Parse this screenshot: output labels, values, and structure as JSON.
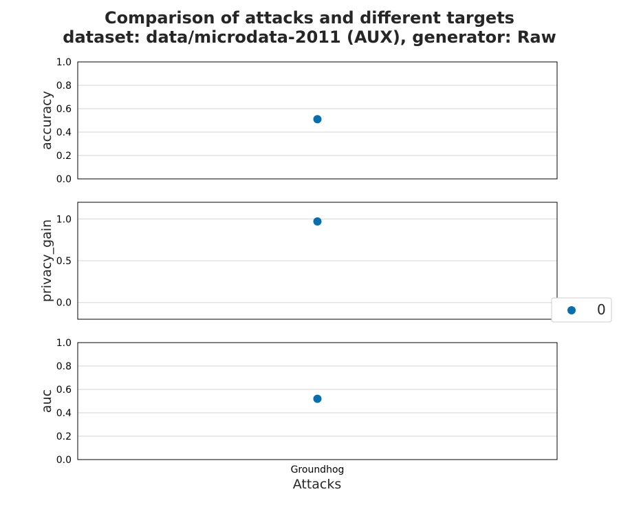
{
  "title_line1": "Comparison of attacks and different targets",
  "title_line2": "dataset: data/microdata-2011 (AUX), generator: Raw",
  "xlabel": "Attacks",
  "legend": {
    "entries": [
      "0"
    ],
    "placement": "right-center"
  },
  "colors": {
    "series": "#0a6eab",
    "grid": "#d6d6d6",
    "frame": "#000000"
  },
  "chart_data": [
    {
      "type": "scatter",
      "categories": [
        "Groundhog"
      ],
      "ylabel": "accuracy",
      "ylim": [
        0.0,
        1.0
      ],
      "yticks": [
        "0.0",
        "0.2",
        "0.4",
        "0.6",
        "0.8",
        "1.0"
      ],
      "series": [
        {
          "name": "0",
          "values": [
            0.51
          ]
        }
      ],
      "grid": true
    },
    {
      "type": "scatter",
      "categories": [
        "Groundhog"
      ],
      "ylabel": "privacy_gain",
      "ylim": [
        -0.2,
        1.2
      ],
      "yticks": [
        "0.0",
        "0.5",
        "1.0"
      ],
      "series": [
        {
          "name": "0",
          "values": [
            0.97
          ]
        }
      ],
      "grid": true
    },
    {
      "type": "scatter",
      "categories": [
        "Groundhog"
      ],
      "xticks": [
        "Groundhog"
      ],
      "ylabel": "auc",
      "ylim": [
        0.0,
        1.0
      ],
      "yticks": [
        "0.0",
        "0.2",
        "0.4",
        "0.6",
        "0.8",
        "1.0"
      ],
      "series": [
        {
          "name": "0",
          "values": [
            0.52
          ]
        }
      ],
      "grid": true
    }
  ]
}
